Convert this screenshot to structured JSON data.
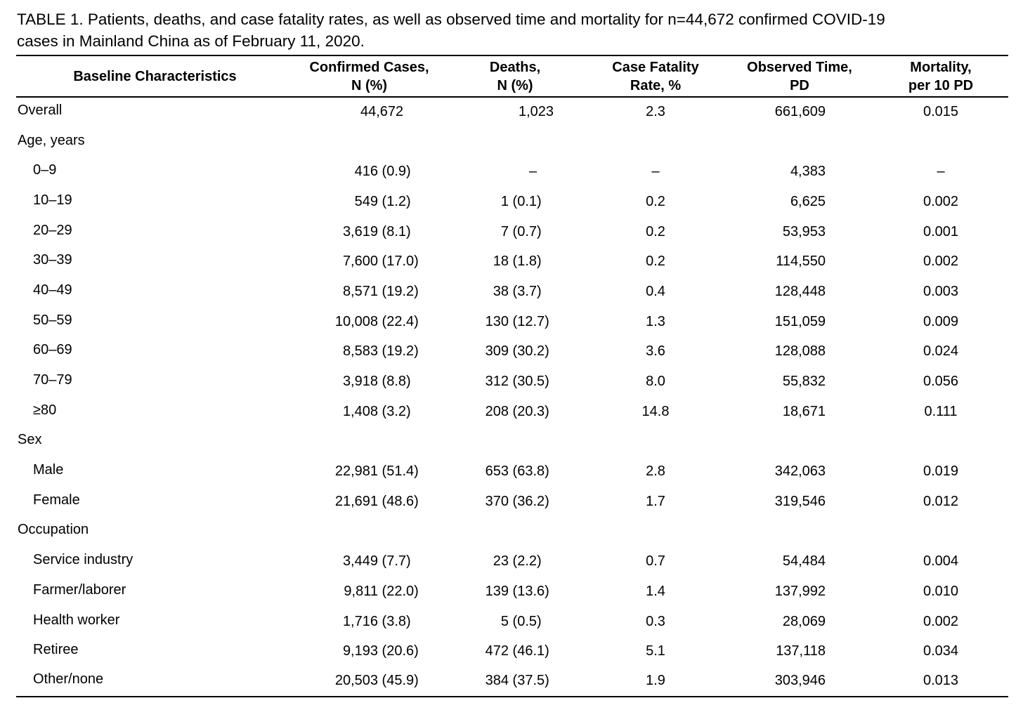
{
  "caption": {
    "line1": "TABLE 1. Patients, deaths, and case fatality rates, as well as observed time and mortality for n=44,672 confirmed COVID-19",
    "line2": "cases in Mainland China as of February 11, 2020."
  },
  "headers": [
    {
      "line1": "Baseline Characteristics",
      "line2": ""
    },
    {
      "line1": "Confirmed Cases,",
      "line2": "N (%)"
    },
    {
      "line1": "Deaths,",
      "line2": "N (%)"
    },
    {
      "line1": "Case Fatality",
      "line2": "Rate, %"
    },
    {
      "line1": "Observed Time,",
      "line2": "PD"
    },
    {
      "line1": "Mortality,",
      "line2": "per 10 PD"
    }
  ],
  "rows": [
    {
      "label": "Overall",
      "cases": "44,672",
      "deaths": "1,023",
      "cfr": "2.3",
      "time": "661,609",
      "mortality": "0.015"
    },
    {
      "label": "Age, years",
      "cases": "",
      "deaths": "",
      "cfr": "",
      "time": "",
      "mortality": ""
    },
    {
      "label": "0–9",
      "cases": "416 (0.9)",
      "deaths": "–",
      "cfr": "–",
      "time": "4,383",
      "mortality": "–"
    },
    {
      "label": "10–19",
      "cases": "549 (1.2)",
      "deaths": "1 (0.1)",
      "cfr": "0.2",
      "time": "6,625",
      "mortality": "0.002"
    },
    {
      "label": "20–29",
      "cases": "3,619 (8.1)",
      "deaths": "7 (0.7)",
      "cfr": "0.2",
      "time": "53,953",
      "mortality": "0.001"
    },
    {
      "label": "30–39",
      "cases": "7,600 (17.0)",
      "deaths": "18 (1.8)",
      "cfr": "0.2",
      "time": "114,550",
      "mortality": "0.002"
    },
    {
      "label": "40–49",
      "cases": "8,571 (19.2)",
      "deaths": "38 (3.7)",
      "cfr": "0.4",
      "time": "128,448",
      "mortality": "0.003"
    },
    {
      "label": "50–59",
      "cases": "10,008 (22.4)",
      "deaths": "130 (12.7)",
      "cfr": "1.3",
      "time": "151,059",
      "mortality": "0.009"
    },
    {
      "label": "60–69",
      "cases": "8,583 (19.2)",
      "deaths": "309 (30.2)",
      "cfr": "3.6",
      "time": "128,088",
      "mortality": "0.024"
    },
    {
      "label": "70–79",
      "cases": "3,918 (8.8)",
      "deaths": "312 (30.5)",
      "cfr": "8.0",
      "time": "55,832",
      "mortality": "0.056"
    },
    {
      "label": "≥80",
      "cases": "1,408 (3.2)",
      "deaths": "208 (20.3)",
      "cfr": "14.8",
      "time": "18,671",
      "mortality": "0.111"
    },
    {
      "label": "Sex",
      "cases": "",
      "deaths": "",
      "cfr": "",
      "time": "",
      "mortality": ""
    },
    {
      "label": "Male",
      "cases": "22,981 (51.4)",
      "deaths": "653 (63.8)",
      "cfr": "2.8",
      "time": "342,063",
      "mortality": "0.019"
    },
    {
      "label": "Female",
      "cases": "21,691 (48.6)",
      "deaths": "370 (36.2)",
      "cfr": "1.7",
      "time": "319,546",
      "mortality": "0.012"
    },
    {
      "label": "Occupation",
      "cases": "",
      "deaths": "",
      "cfr": "",
      "time": "",
      "mortality": ""
    },
    {
      "label": "Service industry",
      "cases": "3,449 (7.7)",
      "deaths": "23 (2.2)",
      "cfr": "0.7",
      "time": "54,484",
      "mortality": "0.004"
    },
    {
      "label": "Farmer/laborer",
      "cases": "9,811 (22.0)",
      "deaths": "139 (13.6)",
      "cfr": "1.4",
      "time": "137,992",
      "mortality": "0.010"
    },
    {
      "label": "Health worker",
      "cases": "1,716 (3.8)",
      "deaths": "5 (0.5)",
      "cfr": "0.3",
      "time": "28,069",
      "mortality": "0.002"
    },
    {
      "label": "Retiree",
      "cases": "9,193 (20.6)",
      "deaths": "472 (46.1)",
      "cfr": "5.1",
      "time": "137,118",
      "mortality": "0.034"
    },
    {
      "label": "Other/none",
      "cases": "20,503 (45.9)",
      "deaths": "384 (37.5)",
      "cfr": "1.9",
      "time": "303,946",
      "mortality": "0.013"
    }
  ]
}
